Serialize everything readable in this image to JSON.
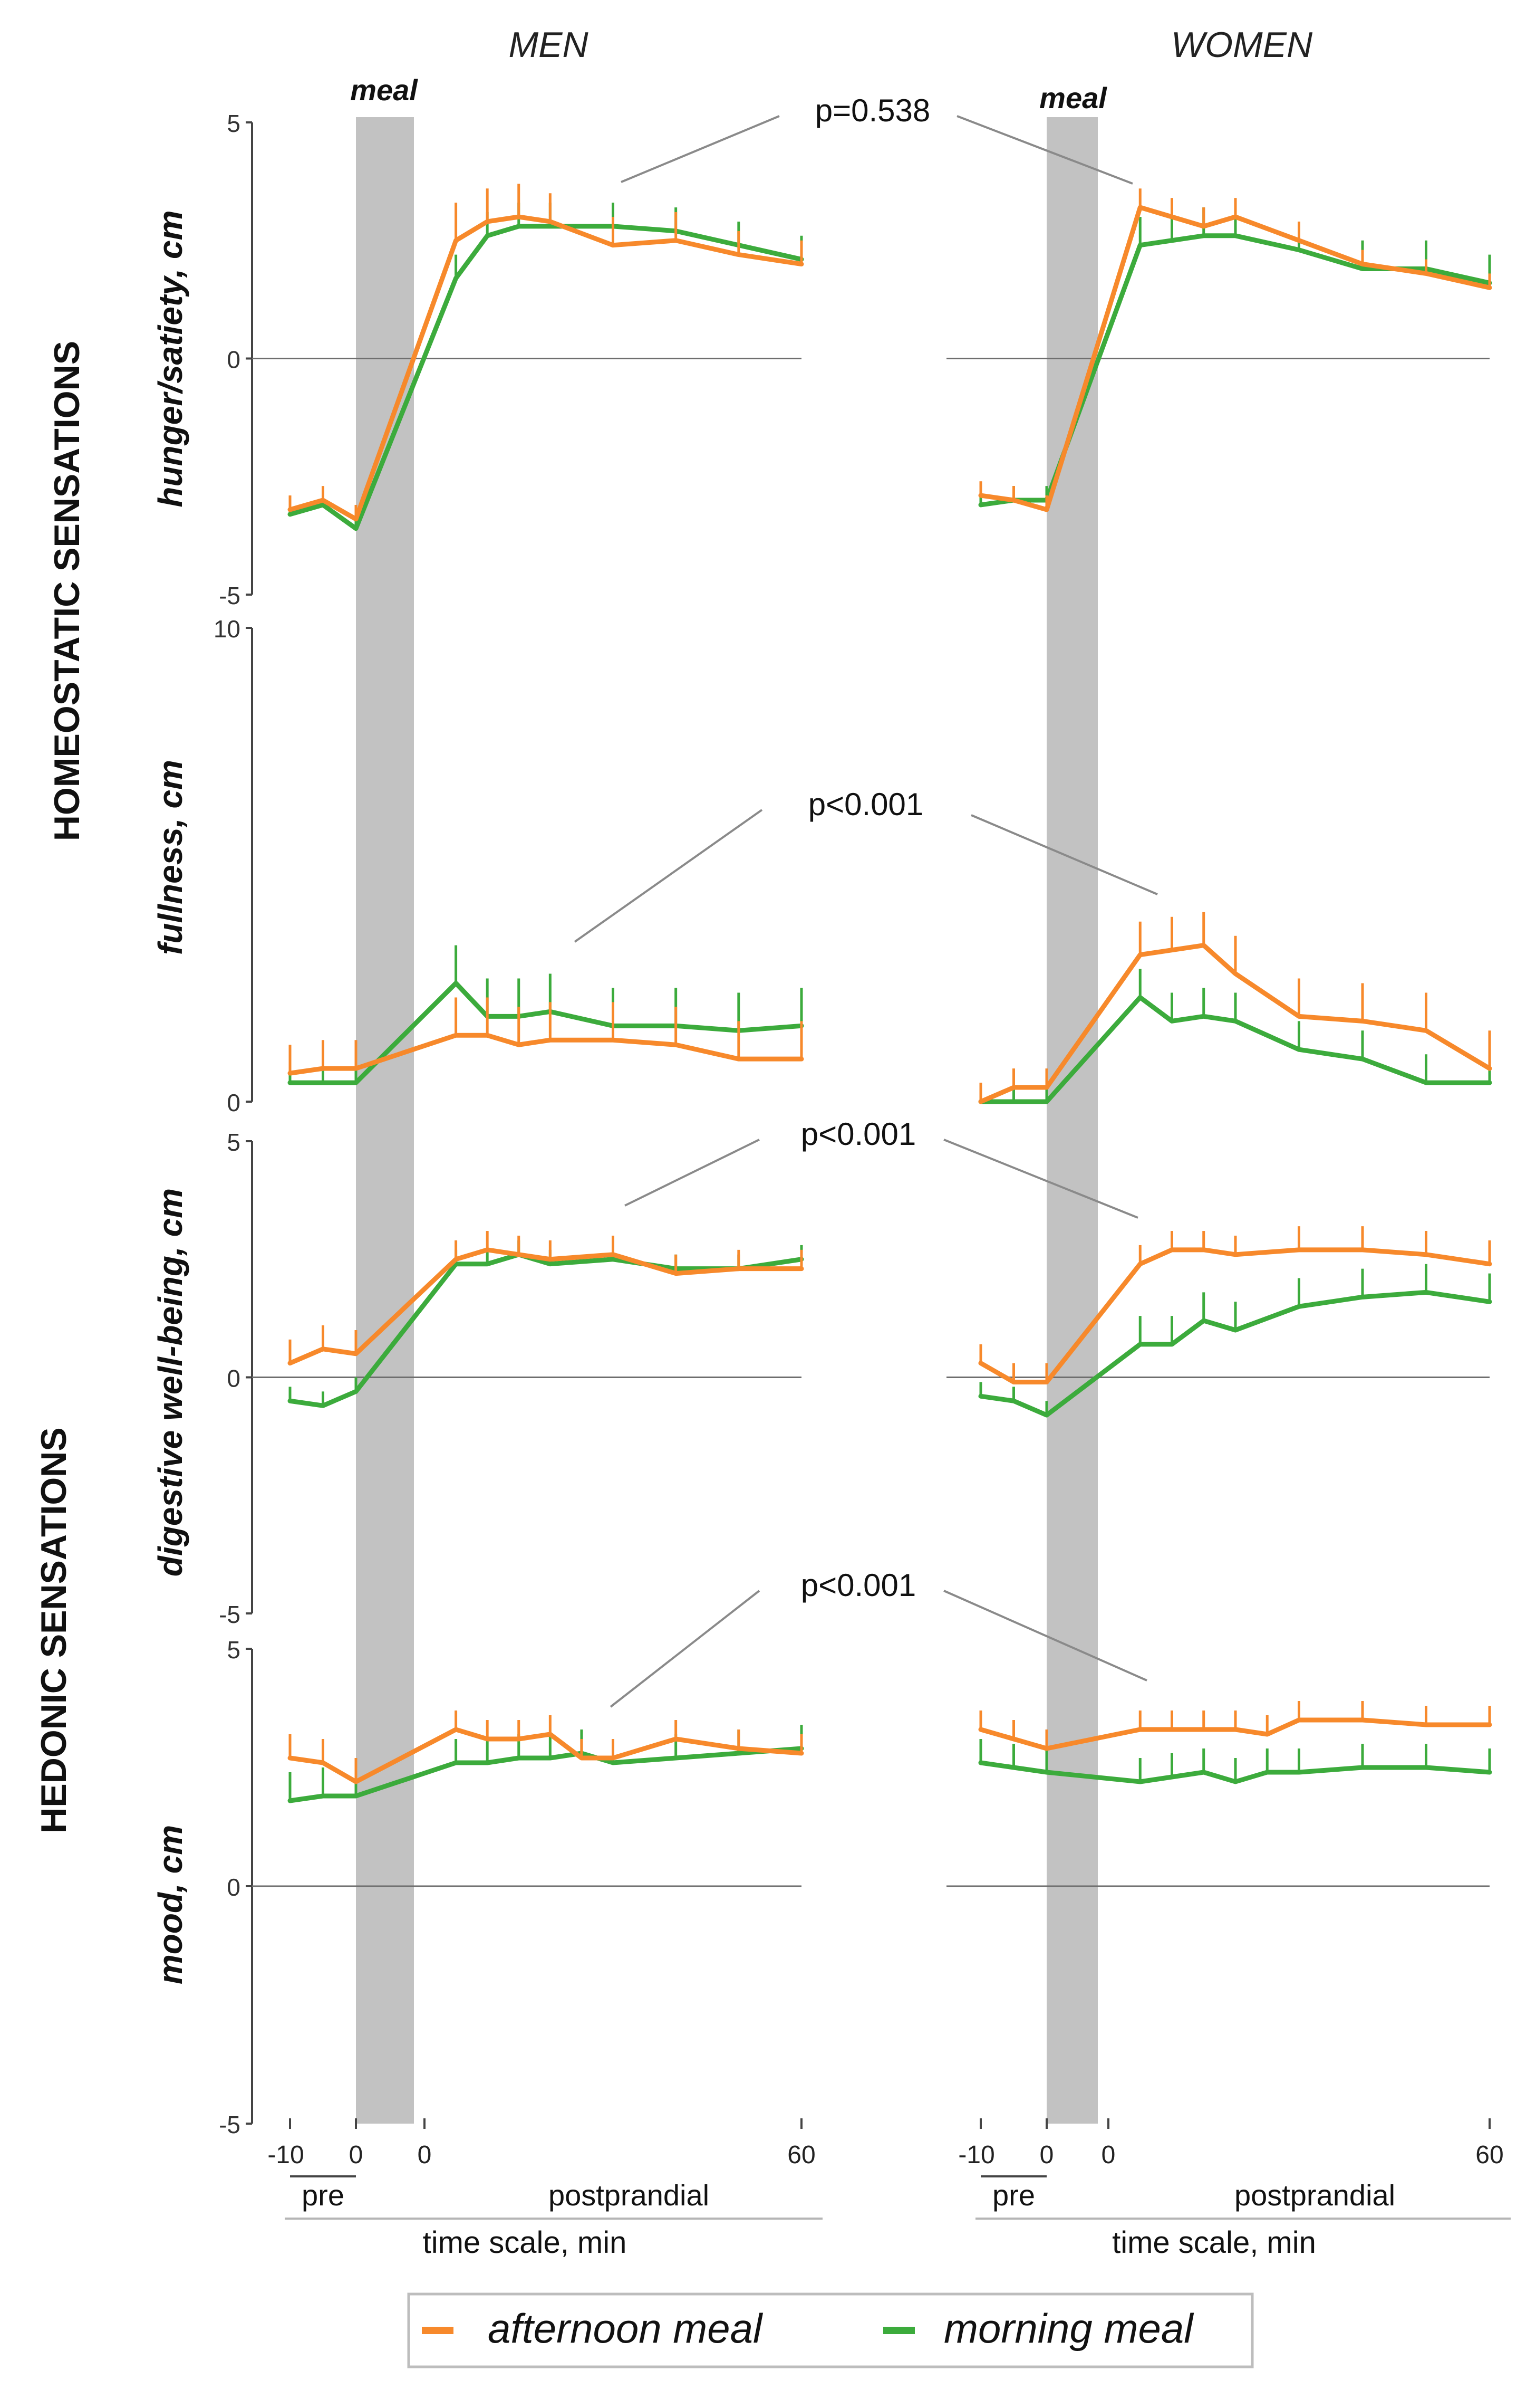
{
  "columns": [
    {
      "title": "MEN",
      "meal_label": "meal"
    },
    {
      "title": "WOMEN",
      "meal_label": "meal"
    }
  ],
  "groups": {
    "homeostatic": "HOMEOSTATIC SENSATIONS",
    "hedonic": "HEDONIC SENSATIONS"
  },
  "x_axis": {
    "ticks": [
      "-10",
      "0",
      "0",
      "60"
    ],
    "pre_label": "pre",
    "post_label": "postprandial",
    "scale_label": "time scale, min"
  },
  "legend": {
    "afternoon": "afternoon meal",
    "morning": "morning meal"
  },
  "colors": {
    "afternoon": "#f7892b",
    "morning": "#3cab3c",
    "meal_band": "#c2c2c2",
    "axis": "#444444",
    "baseline": "#6e6e6e",
    "pointer": "#8a8a8a"
  },
  "chart_data": [
    {
      "type": "line",
      "id": "hunger",
      "ylabel": "hunger/satiety, cm",
      "ylim": [
        -5,
        5
      ],
      "yticks": [
        "5",
        "0",
        "-5"
      ],
      "annotation": "p=0.538",
      "x": [
        -10,
        -5,
        0,
        5,
        10,
        15,
        20,
        30,
        40,
        50,
        60
      ],
      "x_note": "-10..0 = pre-meal minutes, 0..60 = postprandial minutes; the meal period is the grey band between the two zeros",
      "panels": [
        {
          "sex": "MEN",
          "series": [
            {
              "name": "afternoon meal",
              "values": [
                -3.2,
                -3.0,
                -3.4,
                2.5,
                2.9,
                3.0,
                2.9,
                2.4,
                2.5,
                2.2,
                2.0
              ],
              "err": [
                0.3,
                0.3,
                0.3,
                0.8,
                0.7,
                0.7,
                0.6,
                0.6,
                0.6,
                0.5,
                0.5
              ]
            },
            {
              "name": "morning meal",
              "values": [
                -3.3,
                -3.1,
                -3.6,
                1.7,
                2.6,
                2.8,
                2.8,
                2.8,
                2.7,
                2.4,
                2.1
              ],
              "err": [
                0.3,
                0.3,
                0.3,
                0.5,
                0.5,
                0.5,
                0.5,
                0.5,
                0.5,
                0.5,
                0.5
              ]
            }
          ]
        },
        {
          "sex": "WOMEN",
          "series": [
            {
              "name": "afternoon meal",
              "values": [
                -2.9,
                -3.0,
                -3.2,
                3.2,
                3.0,
                2.8,
                3.0,
                2.5,
                2.0,
                1.8,
                1.5
              ],
              "err": [
                0.3,
                0.3,
                0.3,
                0.4,
                0.4,
                0.4,
                0.4,
                0.4,
                0.3,
                0.3,
                0.3
              ]
            },
            {
              "name": "morning meal",
              "values": [
                -3.1,
                -3.0,
                -3.0,
                2.4,
                2.5,
                2.6,
                2.6,
                2.3,
                1.9,
                1.9,
                1.6
              ],
              "err": [
                0.3,
                0.3,
                0.3,
                0.6,
                0.6,
                0.6,
                0.6,
                0.6,
                0.6,
                0.6,
                0.6
              ]
            }
          ]
        }
      ]
    },
    {
      "type": "line",
      "id": "fullness",
      "ylabel": "fullness, cm",
      "ylim": [
        0,
        10
      ],
      "yticks": [
        "10",
        "0"
      ],
      "annotation": "p<0.001",
      "x": [
        -10,
        -5,
        0,
        5,
        10,
        15,
        20,
        30,
        40,
        50,
        60
      ],
      "panels": [
        {
          "sex": "MEN",
          "series": [
            {
              "name": "afternoon meal",
              "values": [
                0.6,
                0.7,
                0.7,
                1.4,
                1.4,
                1.2,
                1.3,
                1.3,
                1.2,
                0.9,
                0.9
              ],
              "err": [
                0.6,
                0.6,
                0.6,
                0.8,
                0.8,
                0.8,
                0.8,
                0.8,
                0.8,
                0.8,
                0.8
              ]
            },
            {
              "name": "morning meal",
              "values": [
                0.4,
                0.4,
                0.4,
                2.5,
                1.8,
                1.8,
                1.9,
                1.6,
                1.6,
                1.5,
                1.6
              ],
              "err": [
                0.5,
                0.5,
                0.5,
                0.8,
                0.8,
                0.8,
                0.8,
                0.8,
                0.8,
                0.8,
                0.8
              ]
            }
          ]
        },
        {
          "sex": "WOMEN",
          "series": [
            {
              "name": "afternoon meal",
              "values": [
                0.0,
                0.3,
                0.3,
                3.1,
                3.2,
                3.3,
                2.7,
                1.8,
                1.7,
                1.5,
                0.7
              ],
              "err": [
                0.4,
                0.4,
                0.4,
                0.7,
                0.7,
                0.7,
                0.8,
                0.8,
                0.8,
                0.8,
                0.8
              ]
            },
            {
              "name": "morning meal",
              "values": [
                0.0,
                0.0,
                0.0,
                2.2,
                1.7,
                1.8,
                1.7,
                1.1,
                0.9,
                0.4,
                0.4
              ],
              "err": [
                0.3,
                0.3,
                0.3,
                0.6,
                0.6,
                0.6,
                0.6,
                0.6,
                0.6,
                0.6,
                0.6
              ]
            }
          ]
        }
      ]
    },
    {
      "type": "line",
      "id": "digestive",
      "ylabel": "digestive well-being, cm",
      "ylim": [
        -5,
        5
      ],
      "yticks": [
        "5",
        "0",
        "-5"
      ],
      "annotation": "p<0.001",
      "x": [
        -10,
        -5,
        0,
        5,
        10,
        15,
        20,
        30,
        40,
        50,
        60
      ],
      "panels": [
        {
          "sex": "MEN",
          "series": [
            {
              "name": "afternoon meal",
              "values": [
                0.3,
                0.6,
                0.5,
                2.5,
                2.7,
                2.6,
                2.5,
                2.6,
                2.2,
                2.3,
                2.3
              ],
              "err": [
                0.5,
                0.5,
                0.5,
                0.4,
                0.4,
                0.4,
                0.4,
                0.4,
                0.4,
                0.4,
                0.4
              ]
            },
            {
              "name": "morning meal",
              "values": [
                -0.5,
                -0.6,
                -0.3,
                2.4,
                2.4,
                2.6,
                2.4,
                2.5,
                2.3,
                2.3,
                2.5
              ],
              "err": [
                0.3,
                0.3,
                0.3,
                0.3,
                0.3,
                0.3,
                0.3,
                0.3,
                0.3,
                0.3,
                0.3
              ]
            }
          ]
        },
        {
          "sex": "WOMEN",
          "series": [
            {
              "name": "afternoon meal",
              "values": [
                0.3,
                -0.1,
                -0.1,
                2.4,
                2.7,
                2.7,
                2.6,
                2.7,
                2.7,
                2.6,
                2.4
              ],
              "err": [
                0.4,
                0.4,
                0.4,
                0.4,
                0.4,
                0.4,
                0.4,
                0.5,
                0.5,
                0.5,
                0.5
              ]
            },
            {
              "name": "morning meal",
              "values": [
                -0.4,
                -0.5,
                -0.8,
                0.7,
                0.7,
                1.2,
                1.0,
                1.5,
                1.7,
                1.8,
                1.6
              ],
              "err": [
                0.3,
                0.3,
                0.3,
                0.6,
                0.6,
                0.6,
                0.6,
                0.6,
                0.6,
                0.6,
                0.6
              ]
            }
          ]
        }
      ]
    },
    {
      "type": "line",
      "id": "mood",
      "ylabel": "mood, cm",
      "ylim": [
        -5,
        5
      ],
      "yticks": [
        "5",
        "0",
        "-5"
      ],
      "annotation": "p<0.001",
      "x": [
        -10,
        -5,
        0,
        5,
        10,
        15,
        20,
        25,
        30,
        40,
        50,
        60
      ],
      "panels": [
        {
          "sex": "MEN",
          "series": [
            {
              "name": "afternoon meal",
              "values": [
                2.7,
                2.6,
                2.2,
                3.3,
                3.1,
                3.1,
                3.2,
                2.7,
                2.7,
                3.1,
                2.9,
                2.8
              ],
              "err": [
                0.5,
                0.5,
                0.5,
                0.4,
                0.4,
                0.4,
                0.4,
                0.4,
                0.4,
                0.4,
                0.4,
                0.4
              ]
            },
            {
              "name": "morning meal",
              "values": [
                1.8,
                1.9,
                1.9,
                2.6,
                2.6,
                2.7,
                2.7,
                2.8,
                2.6,
                2.7,
                2.8,
                2.9
              ],
              "err": [
                0.6,
                0.6,
                0.6,
                0.5,
                0.5,
                0.5,
                0.5,
                0.5,
                0.5,
                0.5,
                0.5,
                0.5
              ]
            }
          ]
        },
        {
          "sex": "WOMEN",
          "series": [
            {
              "name": "afternoon meal",
              "values": [
                3.3,
                3.1,
                2.9,
                3.3,
                3.3,
                3.3,
                3.3,
                3.2,
                3.5,
                3.5,
                3.4,
                3.4
              ],
              "err": [
                0.4,
                0.4,
                0.4,
                0.4,
                0.4,
                0.4,
                0.4,
                0.4,
                0.4,
                0.4,
                0.4,
                0.4
              ]
            },
            {
              "name": "morning meal",
              "values": [
                2.6,
                2.5,
                2.4,
                2.2,
                2.3,
                2.4,
                2.2,
                2.4,
                2.4,
                2.5,
                2.5,
                2.4
              ],
              "err": [
                0.5,
                0.5,
                0.5,
                0.5,
                0.5,
                0.5,
                0.5,
                0.5,
                0.5,
                0.5,
                0.5,
                0.5
              ]
            }
          ]
        }
      ]
    }
  ]
}
